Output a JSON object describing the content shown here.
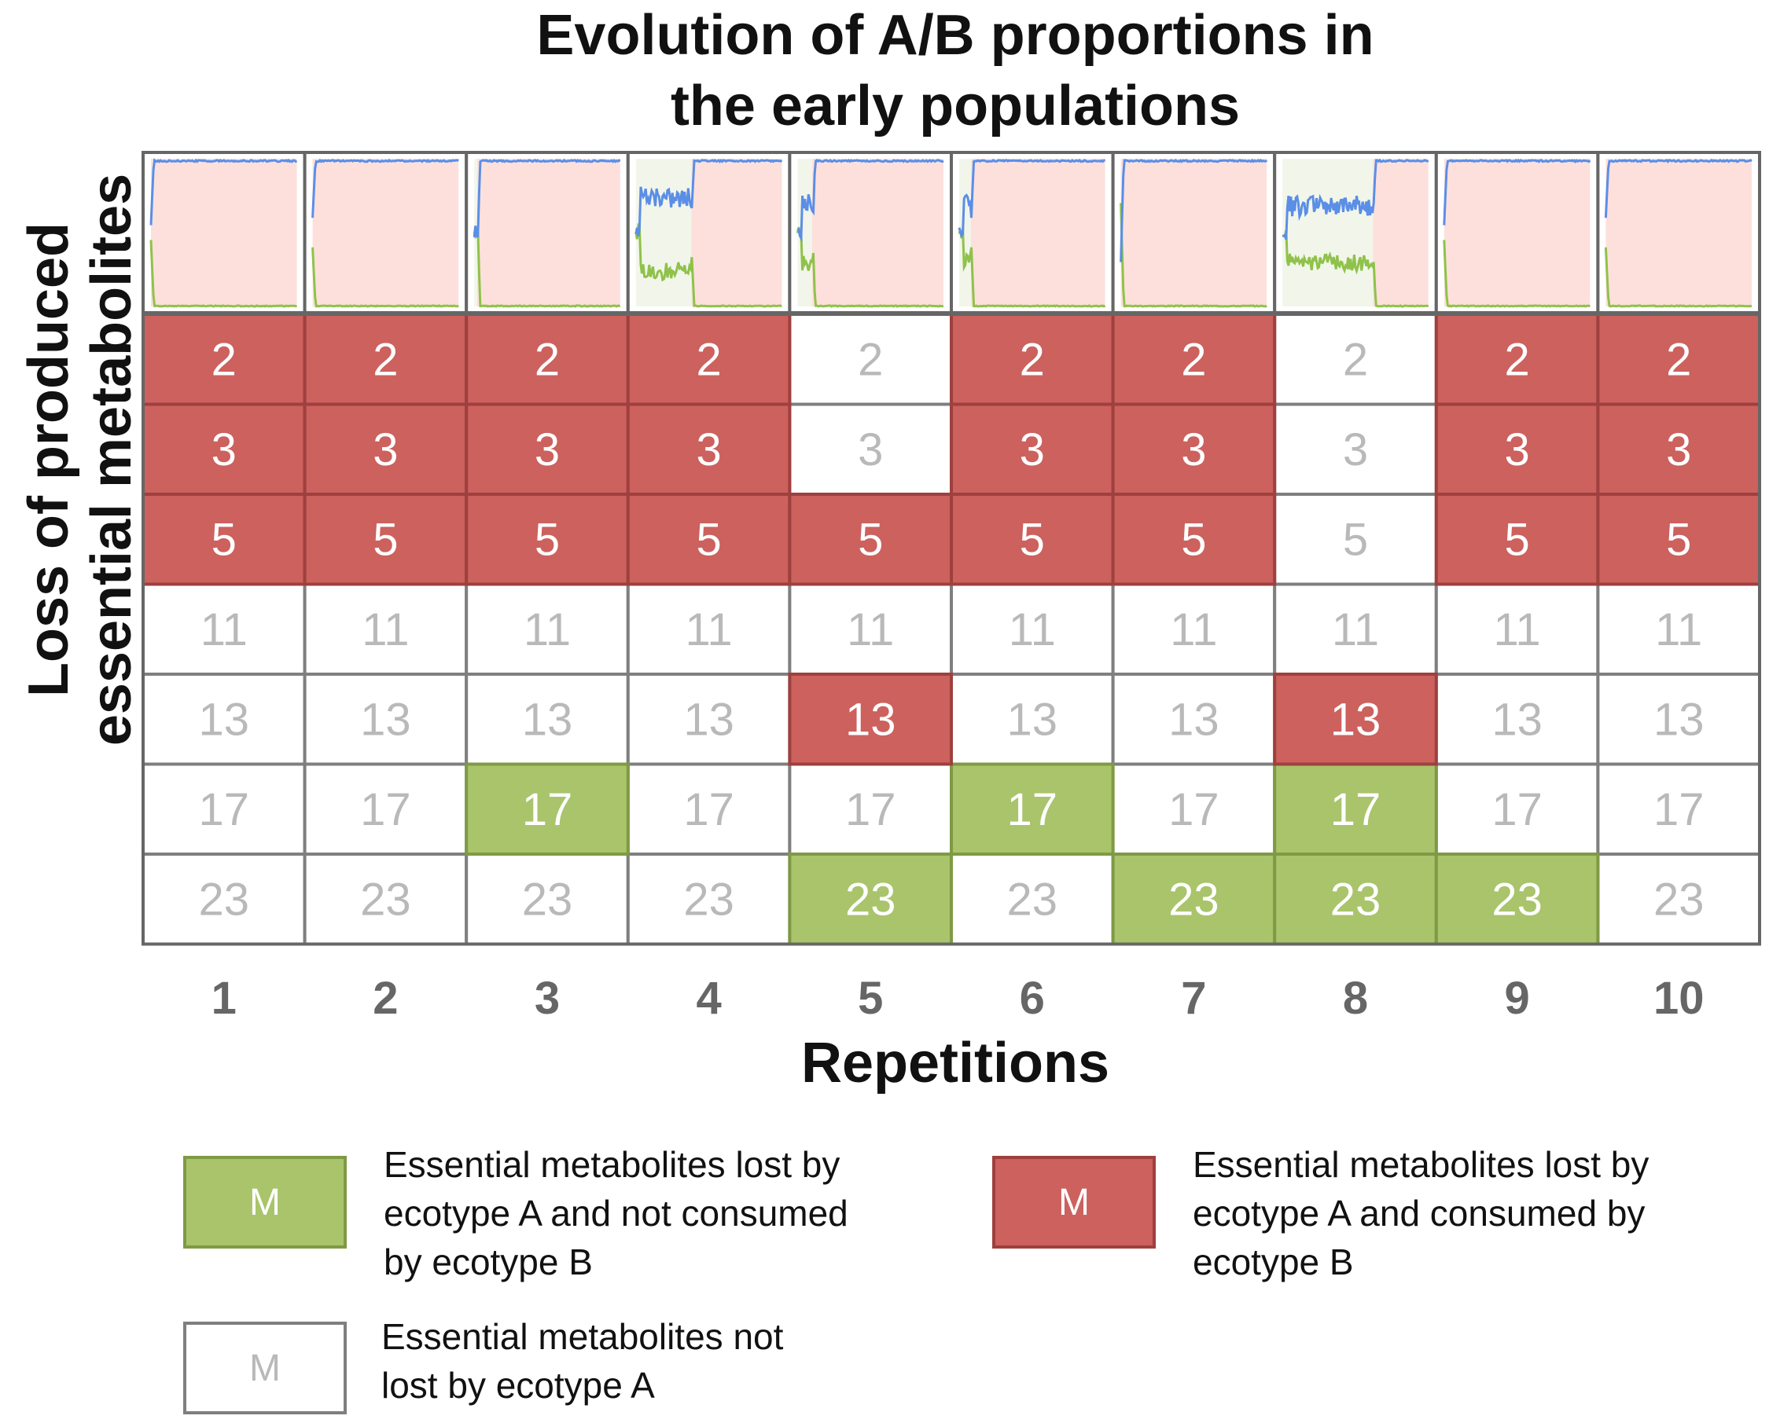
{
  "title": [
    "Evolution of A/B proportions in",
    "the early populations"
  ],
  "ylabel": [
    "Loss of produced",
    "essential metabolites"
  ],
  "xlabel": "Repetitions",
  "colors": {
    "lost_not_consumed": "#a9c46b",
    "lost_not_consumed_border": "#7e9a45",
    "lost_consumed": "#cc615e",
    "lost_consumed_border": "#9e403e",
    "not_lost": "#ffffff",
    "not_lost_border": "#7f7f7f",
    "text_on_colored": "#ffffff",
    "text_on_white": "#b9b9b9",
    "ecotype_a_line": "#5b8ee6",
    "ecotype_b_line": "#8fc24a",
    "fixation_background": "#fde0dc",
    "coexistence_background": "#f2f6ea",
    "grid_border": "#666666",
    "tick_label": "#666666"
  },
  "chart_data": {
    "type": "table",
    "columns": [
      "1",
      "2",
      "3",
      "4",
      "5",
      "6",
      "7",
      "8",
      "9",
      "10"
    ],
    "rows": [
      "2",
      "3",
      "5",
      "11",
      "13",
      "17",
      "23"
    ],
    "states": [
      [
        "C",
        "C",
        "C",
        "C",
        "N",
        "C",
        "C",
        "N",
        "C",
        "C"
      ],
      [
        "C",
        "C",
        "C",
        "C",
        "N",
        "C",
        "C",
        "N",
        "C",
        "C"
      ],
      [
        "C",
        "C",
        "C",
        "C",
        "C",
        "C",
        "C",
        "N",
        "C",
        "C"
      ],
      [
        "N",
        "N",
        "N",
        "N",
        "N",
        "N",
        "N",
        "N",
        "N",
        "N"
      ],
      [
        "N",
        "N",
        "N",
        "N",
        "C",
        "N",
        "N",
        "C",
        "N",
        "N"
      ],
      [
        "N",
        "N",
        "L",
        "N",
        "N",
        "L",
        "N",
        "L",
        "N",
        "N"
      ],
      [
        "N",
        "N",
        "N",
        "N",
        "L",
        "N",
        "L",
        "L",
        "L",
        "N"
      ]
    ],
    "state_key": {
      "L": "lost by ecotype A, not consumed by ecotype B",
      "C": "lost by ecotype A, consumed by ecotype B",
      "N": "not lost by ecotype A"
    },
    "sparklines": [
      {
        "repetition": "1",
        "coexistence_until": 0.0,
        "b_start": 0.45
      },
      {
        "repetition": "2",
        "coexistence_until": 0.0,
        "b_start": 0.4
      },
      {
        "repetition": "3",
        "coexistence_until": 0.02,
        "b_start": 0.7
      },
      {
        "repetition": "4",
        "coexistence_until": 0.38,
        "a_level": 0.74,
        "b_level": 0.24
      },
      {
        "repetition": "5",
        "coexistence_until": 0.1,
        "b_start": 0.62
      },
      {
        "repetition": "6",
        "coexistence_until": 0.08,
        "b_start": 0.48
      },
      {
        "repetition": "7",
        "coexistence_until": 0.0,
        "b_start": 0.7
      },
      {
        "repetition": "8",
        "coexistence_until": 0.62,
        "a_level": 0.68,
        "b_level": 0.3
      },
      {
        "repetition": "9",
        "coexistence_until": 0.0,
        "b_start": 0.45
      },
      {
        "repetition": "10",
        "coexistence_until": 0.0,
        "b_start": 0.4
      }
    ]
  },
  "legend": [
    {
      "symbol": "M",
      "state": "L",
      "lines": [
        "Essential metabolites lost by",
        "ecotype A and not consumed",
        "by ecotype B"
      ]
    },
    {
      "symbol": "M",
      "state": "C",
      "lines": [
        "Essential metabolites lost by",
        "ecotype A and consumed by",
        "ecotype B"
      ]
    },
    {
      "symbol": "M",
      "state": "N",
      "lines": [
        "Essential metabolites not",
        "lost by ecotype A"
      ]
    }
  ]
}
